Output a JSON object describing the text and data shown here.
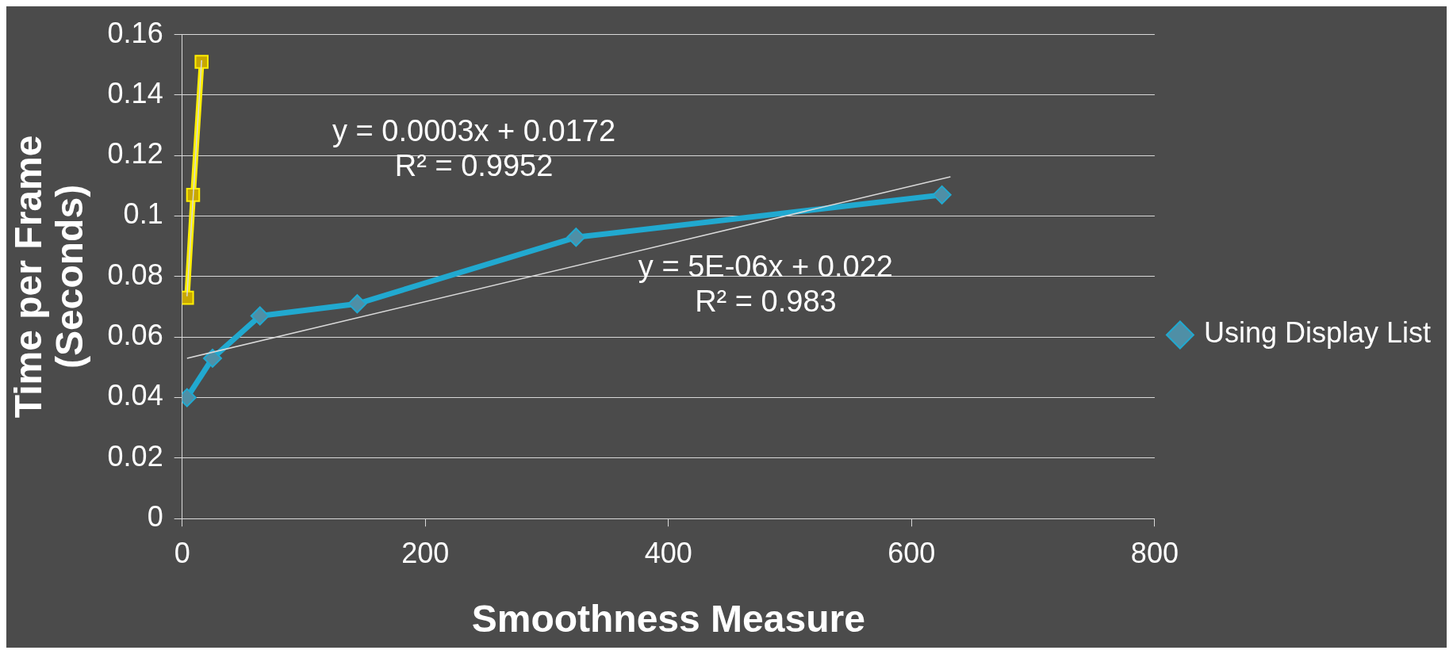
{
  "chart_data": {
    "type": "line",
    "xlabel": "Smoothness Measure",
    "ylabel": "Time per Frame (Seconds)",
    "xlim": [
      0,
      800
    ],
    "xticks": [
      0,
      200,
      400,
      600,
      800
    ],
    "ylim": [
      0,
      0.16
    ],
    "yticks": [
      0,
      0.02,
      0.04,
      0.06,
      0.08,
      0.1,
      0.12,
      0.14,
      0.16
    ],
    "grid": "y",
    "legend": "right",
    "series": [
      {
        "name": "Using Display List",
        "color": "#21a9d0",
        "marker": "diamond",
        "x": [
          4,
          25,
          64,
          144,
          324,
          625
        ],
        "values": [
          0.04,
          0.053,
          0.067,
          0.071,
          0.093,
          0.107
        ]
      },
      {
        "color": "#ffee00",
        "marker": "square",
        "x": [
          4,
          9,
          16
        ],
        "values": [
          0.073,
          0.107,
          0.151
        ]
      },
      {
        "color": "#d9d9d9",
        "marker": "none",
        "x": [
          4,
          16
        ],
        "values": [
          0.0735,
          0.1515
        ]
      },
      {
        "color": "#d9d9d9",
        "marker": "none",
        "x": [
          4,
          632
        ],
        "values": [
          0.053,
          0.113
        ]
      }
    ],
    "annotations": [
      "y = 0.0003x + 0.0172\nR² = 0.9952",
      "y = 5E-06x + 0.022\nR² = 0.983"
    ]
  }
}
